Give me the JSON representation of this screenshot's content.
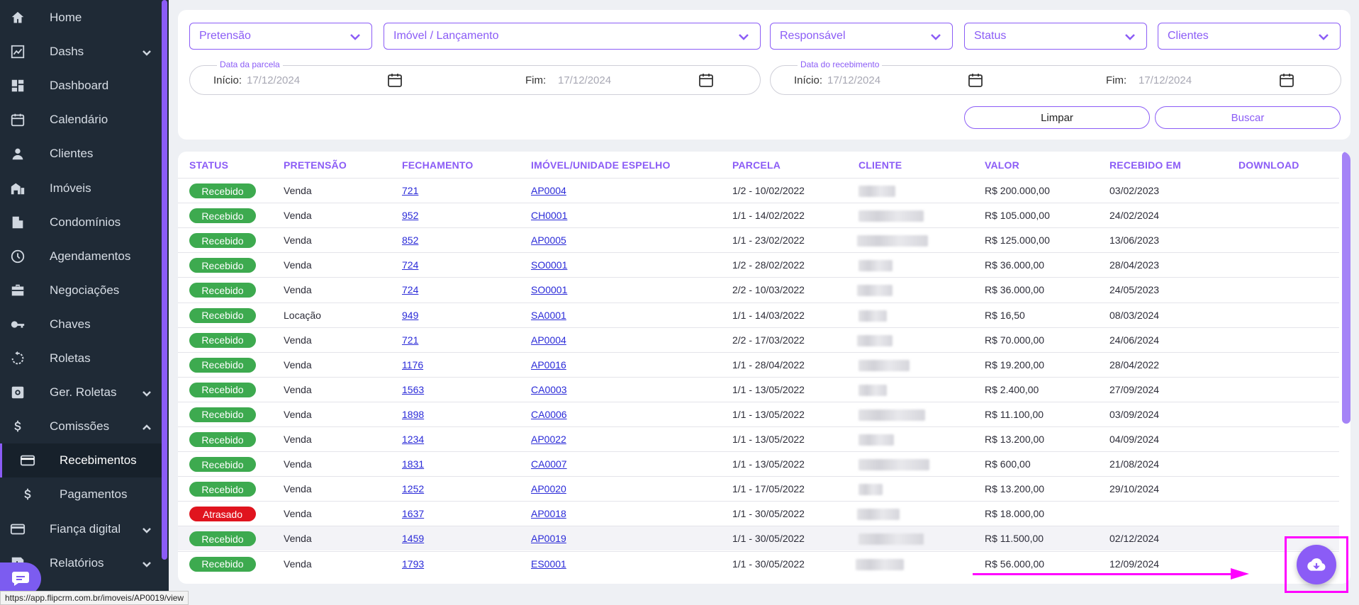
{
  "sidebar": {
    "items": [
      {
        "label": "Home",
        "icon": "home-icon",
        "chevron": false
      },
      {
        "label": "Dashs",
        "icon": "chart-line-icon",
        "chevron": "down"
      },
      {
        "label": "Dashboard",
        "icon": "dashboard-grid-icon",
        "chevron": false
      },
      {
        "label": "Calendário",
        "icon": "calendar-icon",
        "chevron": false
      },
      {
        "label": "Clientes",
        "icon": "user-icon",
        "chevron": false
      },
      {
        "label": "Imóveis",
        "icon": "house-icon",
        "chevron": false
      },
      {
        "label": "Condomínios",
        "icon": "building-icon",
        "chevron": false
      },
      {
        "label": "Agendamentos",
        "icon": "clock-icon",
        "chevron": false
      },
      {
        "label": "Negociações",
        "icon": "briefcase-icon",
        "chevron": false
      },
      {
        "label": "Chaves",
        "icon": "key-icon",
        "chevron": false
      },
      {
        "label": "Roletas",
        "icon": "rotate-icon",
        "chevron": false
      },
      {
        "label": "Ger. Roletas",
        "icon": "settings-box-icon",
        "chevron": "down"
      },
      {
        "label": "Comissões",
        "icon": "dollar-icon",
        "chevron": "up"
      },
      {
        "label": "Recebimentos",
        "icon": "credit-card-icon",
        "chevron": false,
        "sub": true,
        "active": true
      },
      {
        "label": "Pagamentos",
        "icon": "dollar-icon",
        "chevron": false,
        "sub": true
      },
      {
        "label": "Fiança digital",
        "icon": "credit-card-icon",
        "chevron": "down"
      },
      {
        "label": "Relatórios",
        "icon": "report-icon",
        "chevron": "down"
      }
    ]
  },
  "status_url": "https://app.flipcrm.com.br/imoveis/AP0019/view",
  "filters": {
    "pretensao": "Pretensão",
    "imovel": "Imóvel / Lançamento",
    "responsavel": "Responsável",
    "status": "Status",
    "clientes": "Clientes",
    "parcela_group": {
      "legend": "Data da parcela",
      "inicio_label": "Início:",
      "inicio_value": "17/12/2024",
      "fim_label": "Fim:",
      "fim_value": "17/12/2024"
    },
    "recebimento_group": {
      "legend": "Data do recebimento",
      "inicio_label": "Início:",
      "inicio_value": "17/12/2024",
      "fim_label": "Fim:",
      "fim_value": "17/12/2024"
    },
    "limpar_label": "Limpar",
    "buscar_label": "Buscar"
  },
  "table": {
    "headers": [
      "STATUS",
      "PRETENSÃO",
      "FECHAMENTO",
      "IMÓVEL/UNIDADE ESPELHO",
      "PARCELA",
      "CLIENTE",
      "VALOR",
      "RECEBIDO EM",
      "DOWNLOAD"
    ],
    "rows": [
      {
        "status": "Recebido",
        "pretensao": "Venda",
        "fechamento": "721",
        "imovel": "AP0004",
        "parcela": "1/2 - 10/02/2022",
        "valor": "R$ 200.000,00",
        "recebido": "03/02/2023"
      },
      {
        "status": "Recebido",
        "pretensao": "Venda",
        "fechamento": "952",
        "imovel": "CH0001",
        "parcela": "1/1 - 14/02/2022",
        "valor": "R$ 105.000,00",
        "recebido": "24/02/2024"
      },
      {
        "status": "Recebido",
        "pretensao": "Venda",
        "fechamento": "852",
        "imovel": "AP0005",
        "parcela": "1/1 - 23/02/2022",
        "valor": "R$ 125.000,00",
        "recebido": "13/06/2023"
      },
      {
        "status": "Recebido",
        "pretensao": "Venda",
        "fechamento": "724",
        "imovel": "SO0001",
        "parcela": "1/2 - 28/02/2022",
        "valor": "R$ 36.000,00",
        "recebido": "28/04/2023"
      },
      {
        "status": "Recebido",
        "pretensao": "Venda",
        "fechamento": "724",
        "imovel": "SO0001",
        "parcela": "2/2 - 10/03/2022",
        "valor": "R$ 36.000,00",
        "recebido": "24/05/2023"
      },
      {
        "status": "Recebido",
        "pretensao": "Locação",
        "fechamento": "949",
        "imovel": "SA0001",
        "parcela": "1/1 - 14/03/2022",
        "valor": "R$ 16,50",
        "recebido": "08/03/2024"
      },
      {
        "status": "Recebido",
        "pretensao": "Venda",
        "fechamento": "721",
        "imovel": "AP0004",
        "parcela": "2/2 - 17/03/2022",
        "valor": "R$ 70.000,00",
        "recebido": "24/06/2024"
      },
      {
        "status": "Recebido",
        "pretensao": "Venda",
        "fechamento": "1176",
        "imovel": "AP0016",
        "parcela": "1/1 - 28/04/2022",
        "valor": "R$ 19.200,00",
        "recebido": "28/04/2022"
      },
      {
        "status": "Recebido",
        "pretensao": "Venda",
        "fechamento": "1563",
        "imovel": "CA0003",
        "parcela": "1/1 - 13/05/2022",
        "valor": "R$ 2.400,00",
        "recebido": "27/09/2024"
      },
      {
        "status": "Recebido",
        "pretensao": "Venda",
        "fechamento": "1898",
        "imovel": "CA0006",
        "parcela": "1/1 - 13/05/2022",
        "valor": "R$ 11.100,00",
        "recebido": "03/09/2024"
      },
      {
        "status": "Recebido",
        "pretensao": "Venda",
        "fechamento": "1234",
        "imovel": "AP0022",
        "parcela": "1/1 - 13/05/2022",
        "valor": "R$ 13.200,00",
        "recebido": "04/09/2024"
      },
      {
        "status": "Recebido",
        "pretensao": "Venda",
        "fechamento": "1831",
        "imovel": "CA0007",
        "parcela": "1/1 - 13/05/2022",
        "valor": "R$ 600,00",
        "recebido": "21/08/2024"
      },
      {
        "status": "Recebido",
        "pretensao": "Venda",
        "fechamento": "1252",
        "imovel": "AP0020",
        "parcela": "1/1 - 17/05/2022",
        "valor": "R$ 13.200,00",
        "recebido": "29/10/2024"
      },
      {
        "status": "Atrasado",
        "pretensao": "Venda",
        "fechamento": "1637",
        "imovel": "AP0018",
        "parcela": "1/1 - 30/05/2022",
        "valor": "R$ 18.000,00",
        "recebido": ""
      },
      {
        "status": "Recebido",
        "pretensao": "Venda",
        "fechamento": "1459",
        "imovel": "AP0019",
        "parcela": "1/1 - 30/05/2022",
        "valor": "R$ 11.500,00",
        "recebido": "02/12/2024",
        "highlight": true
      },
      {
        "status": "Recebido",
        "pretensao": "Venda",
        "fechamento": "1793",
        "imovel": "ES0001",
        "parcela": "1/1 - 30/05/2022",
        "valor": "R$ 56.000,00",
        "recebido": "12/09/2024"
      }
    ]
  },
  "colors": {
    "accent": "#8b5cf6",
    "recebido": "#3daa4f",
    "atrasado": "#e0141e",
    "sidebar_bg": "#1f2a36",
    "annotation": "#ff00ff"
  },
  "fab_icon": "cloud-download-icon"
}
